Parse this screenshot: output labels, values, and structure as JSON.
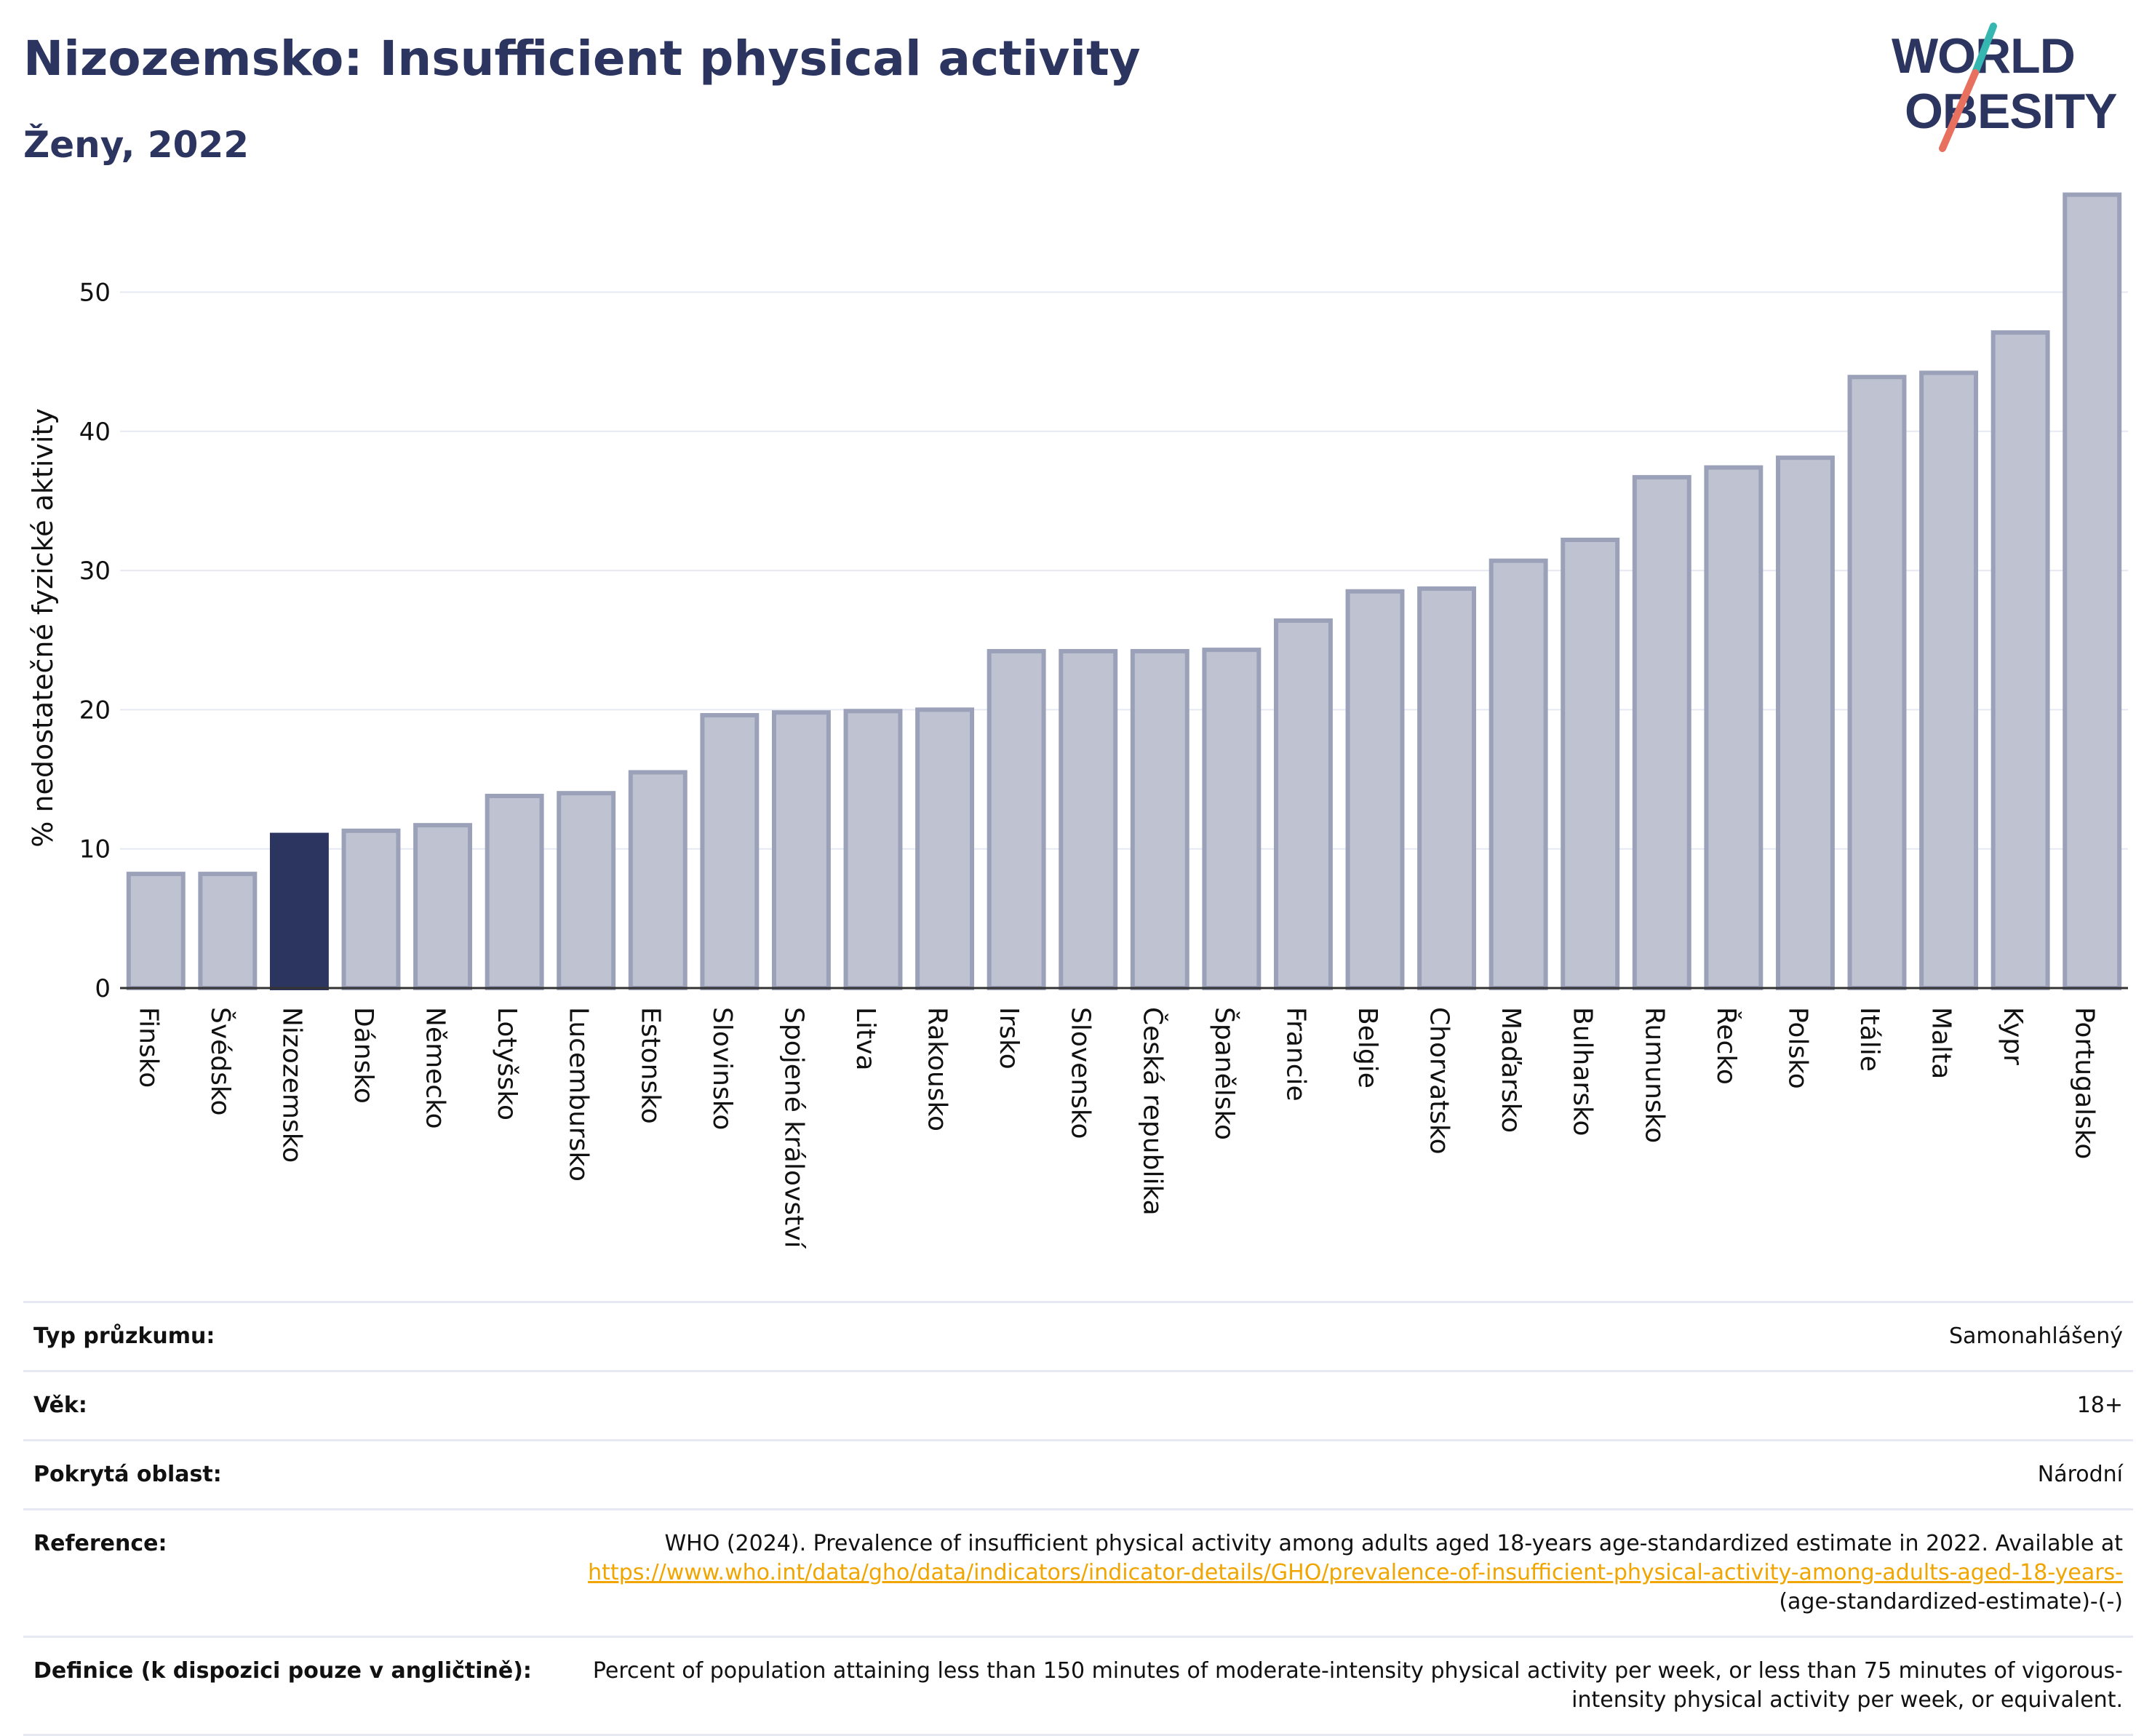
{
  "header": {
    "title": "Nizozemsko: Insufficient physical activity",
    "subtitle": "Ženy, 2022"
  },
  "logo": {
    "line1": "WORLD",
    "line2": "OBESITY",
    "colors": {
      "text": "#2b3560",
      "slash_teal": "#36b6b0",
      "slash_coral": "#e8705f"
    }
  },
  "colors": {
    "bar_fill": "#bfc3d1",
    "bar_stroke": "#9ba1b8",
    "highlight_fill": "#2b3560",
    "grid": "#e6e9f2",
    "axis": "#333333",
    "title": "#2b3560",
    "link": "#f0a500"
  },
  "chart_data": {
    "type": "bar",
    "ylabel": "% nedostatečné fyzické aktivity",
    "ylim": [
      0,
      57.5
    ],
    "yticks": [
      0,
      10,
      20,
      30,
      40,
      50
    ],
    "grid": true,
    "highlight": "Nizozemsko",
    "categories": [
      "Finsko",
      "Švédsko",
      "Nizozemsko",
      "Dánsko",
      "Německo",
      "Lotyšsko",
      "Lucembursko",
      "Estonsko",
      "Slovinsko",
      "Spojené království",
      "Litva",
      "Rakousko",
      "Irsko",
      "Slovensko",
      "Česká republika",
      "Španělsko",
      "Francie",
      "Belgie",
      "Chorvatsko",
      "Maďarsko",
      "Bulharsko",
      "Rumunsko",
      "Řecko",
      "Polsko",
      "Itálie",
      "Malta",
      "Kypr",
      "Portugalsko"
    ],
    "values": [
      8.2,
      8.2,
      11.0,
      11.3,
      11.7,
      13.8,
      14.0,
      15.5,
      19.6,
      19.8,
      19.9,
      20.0,
      24.2,
      24.2,
      24.2,
      24.3,
      26.4,
      28.5,
      28.7,
      30.7,
      32.2,
      36.7,
      37.4,
      38.1,
      43.9,
      44.2,
      47.1,
      57.0
    ]
  },
  "info": {
    "survey_type": {
      "label": "Typ průzkumu:",
      "value": "Samonahlášený"
    },
    "age": {
      "label": "Věk:",
      "value": "18+"
    },
    "coverage": {
      "label": "Pokrytá oblast:",
      "value": "Národní"
    },
    "reference": {
      "label": "Reference:",
      "text": "WHO (2024). Prevalence of insufficient physical activity among adults aged 18-years age-standardized estimate in 2022. Available at",
      "link": "https://www.who.int/data/gho/data/indicators/indicator-details/GHO/prevalence-of-insufficient-physical-activity-among-adults-aged-18-years-",
      "suffix": "(age-standardized-estimate)-(-)"
    },
    "definition": {
      "label": "Definice (k dispozici pouze v angličtině):",
      "value": "Percent of population attaining less than 150 minutes of moderate-intensity physical activity per week, or less than 75 minutes of vigorous-intensity physical activity per week, or equivalent."
    }
  }
}
